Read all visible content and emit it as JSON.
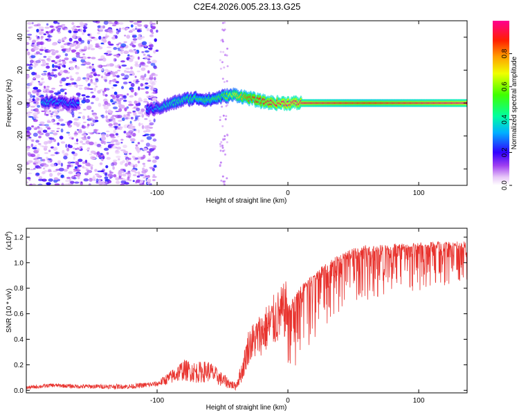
{
  "title": "C2E4.2026.005.23.13.G25",
  "colors": {
    "axis": "#000000",
    "snr_line": "#e8322d",
    "ridge_core": "#ff1e3c"
  },
  "chart_data": [
    {
      "type": "heatmap",
      "name": "spectrogram",
      "xlabel": "Height of straight line (km)",
      "ylabel": "Frequency (Hz)",
      "xlim": [
        -200,
        137
      ],
      "ylim": [
        -50,
        50
      ],
      "xticks": [
        -100,
        0,
        100
      ],
      "yticks": [
        -40,
        -20,
        0,
        20,
        40
      ],
      "colorbar": {
        "label": "Normalized spectral amplitude",
        "range": [
          0,
          1
        ],
        "ticks": [
          "0.0",
          "0.2",
          "0.4",
          "0.6",
          "0.8"
        ],
        "colormap": "rainbow"
      },
      "ridge": {
        "description_x": [
          -185,
          -170,
          -105,
          -95,
          -80,
          -70,
          -60,
          -50,
          -40,
          -30,
          -20,
          -10,
          0,
          20,
          60,
          100,
          137
        ],
        "frequency_hz": [
          1,
          0,
          -4,
          -2,
          2,
          3,
          2,
          4,
          5,
          3,
          1,
          0,
          0,
          0,
          0,
          0,
          0
        ],
        "amplitude": [
          0.35,
          0.3,
          0.3,
          0.4,
          0.45,
          0.5,
          0.5,
          0.55,
          0.7,
          0.85,
          0.9,
          0.95,
          1.0,
          0.95,
          0.9,
          0.95,
          1.0
        ]
      },
      "noise_region_x": [
        -200,
        -100
      ]
    },
    {
      "type": "line",
      "name": "snr",
      "xlabel": "Height of straight line (km)",
      "ylabel": "SNR (10 * v/v)",
      "scale_label": "(x10",
      "scale_exponent": "4",
      "xlim": [
        -200,
        137
      ],
      "ylim": [
        -0.02,
        1.27
      ],
      "xticks": [
        -100,
        0,
        100
      ],
      "yticks": [
        0.0,
        0.2,
        0.4,
        0.6,
        0.8,
        1.0,
        1.2
      ],
      "ytick_labels": [
        "0.0",
        "0.2",
        "0.4",
        "0.6",
        "0.8",
        "1.0",
        "1.2"
      ],
      "envelope_x": [
        -200,
        -180,
        -160,
        -120,
        -100,
        -90,
        -80,
        -70,
        -60,
        -50,
        -40,
        -35,
        -30,
        -20,
        -10,
        0,
        10,
        20,
        30,
        40,
        50,
        60,
        80,
        100,
        120,
        137
      ],
      "envelope_y": [
        0.02,
        0.04,
        0.03,
        0.03,
        0.05,
        0.1,
        0.16,
        0.14,
        0.15,
        0.08,
        0.03,
        0.15,
        0.35,
        0.45,
        0.55,
        0.65,
        0.8,
        0.9,
        1.0,
        1.05,
        1.1,
        1.12,
        1.13,
        1.14,
        1.15,
        1.15
      ],
      "noise_amplitude_x": [
        -200,
        -100,
        -80,
        -60,
        -40,
        -30,
        -10,
        10,
        30,
        60,
        137
      ],
      "noise_amplitude": [
        0.02,
        0.03,
        0.12,
        0.12,
        0.04,
        0.2,
        0.3,
        0.35,
        0.3,
        0.25,
        0.2
      ]
    }
  ]
}
